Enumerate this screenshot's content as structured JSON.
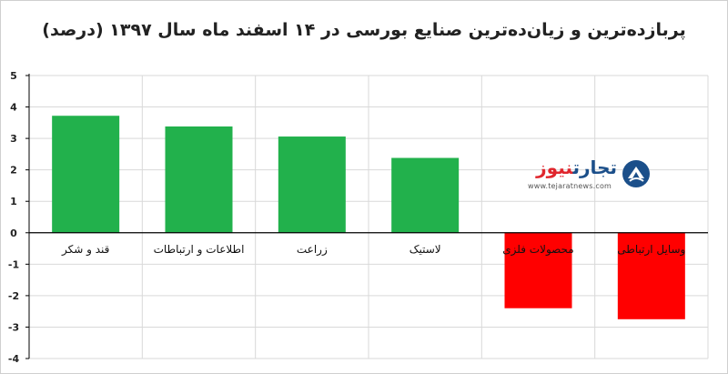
{
  "colors": {
    "positive": "#22b14c",
    "negative": "#ff0000",
    "grid": "#d9d9d9",
    "axis": "#000000",
    "logo_blue": "#1b4f8a",
    "logo_red": "#e0262d"
  },
  "logo": {
    "brand_part1": "تجارت",
    "brand_part2": "نیوز",
    "url": "www.tejaratnews.com",
    "icon": "tejaratnews-emblem-icon"
  },
  "chart_data": {
    "type": "bar",
    "title": "پربازده‌ترین و زیان‌ده‌ترین صنایع بورسی در ۱۴ اسفند ماه سال ۱۳۹۷ (درصد)",
    "categories": [
      "قند و شکر",
      "اطلاعات و ارتباطات",
      "زراعت",
      "لاستیک",
      "محصولات فلزی",
      "وسایل ارتباطی"
    ],
    "values": [
      3.72,
      3.38,
      3.06,
      2.38,
      -2.4,
      -2.75
    ],
    "ylim": [
      -4,
      5
    ],
    "yticks": [
      5,
      4,
      3,
      2,
      1,
      0,
      -1,
      -2,
      -3,
      -4
    ],
    "ytick_labels": [
      "5",
      "4",
      "3",
      "2",
      "1",
      "0",
      "-1",
      "-2",
      "-3",
      "-4"
    ],
    "grid": true,
    "legend": "none"
  }
}
